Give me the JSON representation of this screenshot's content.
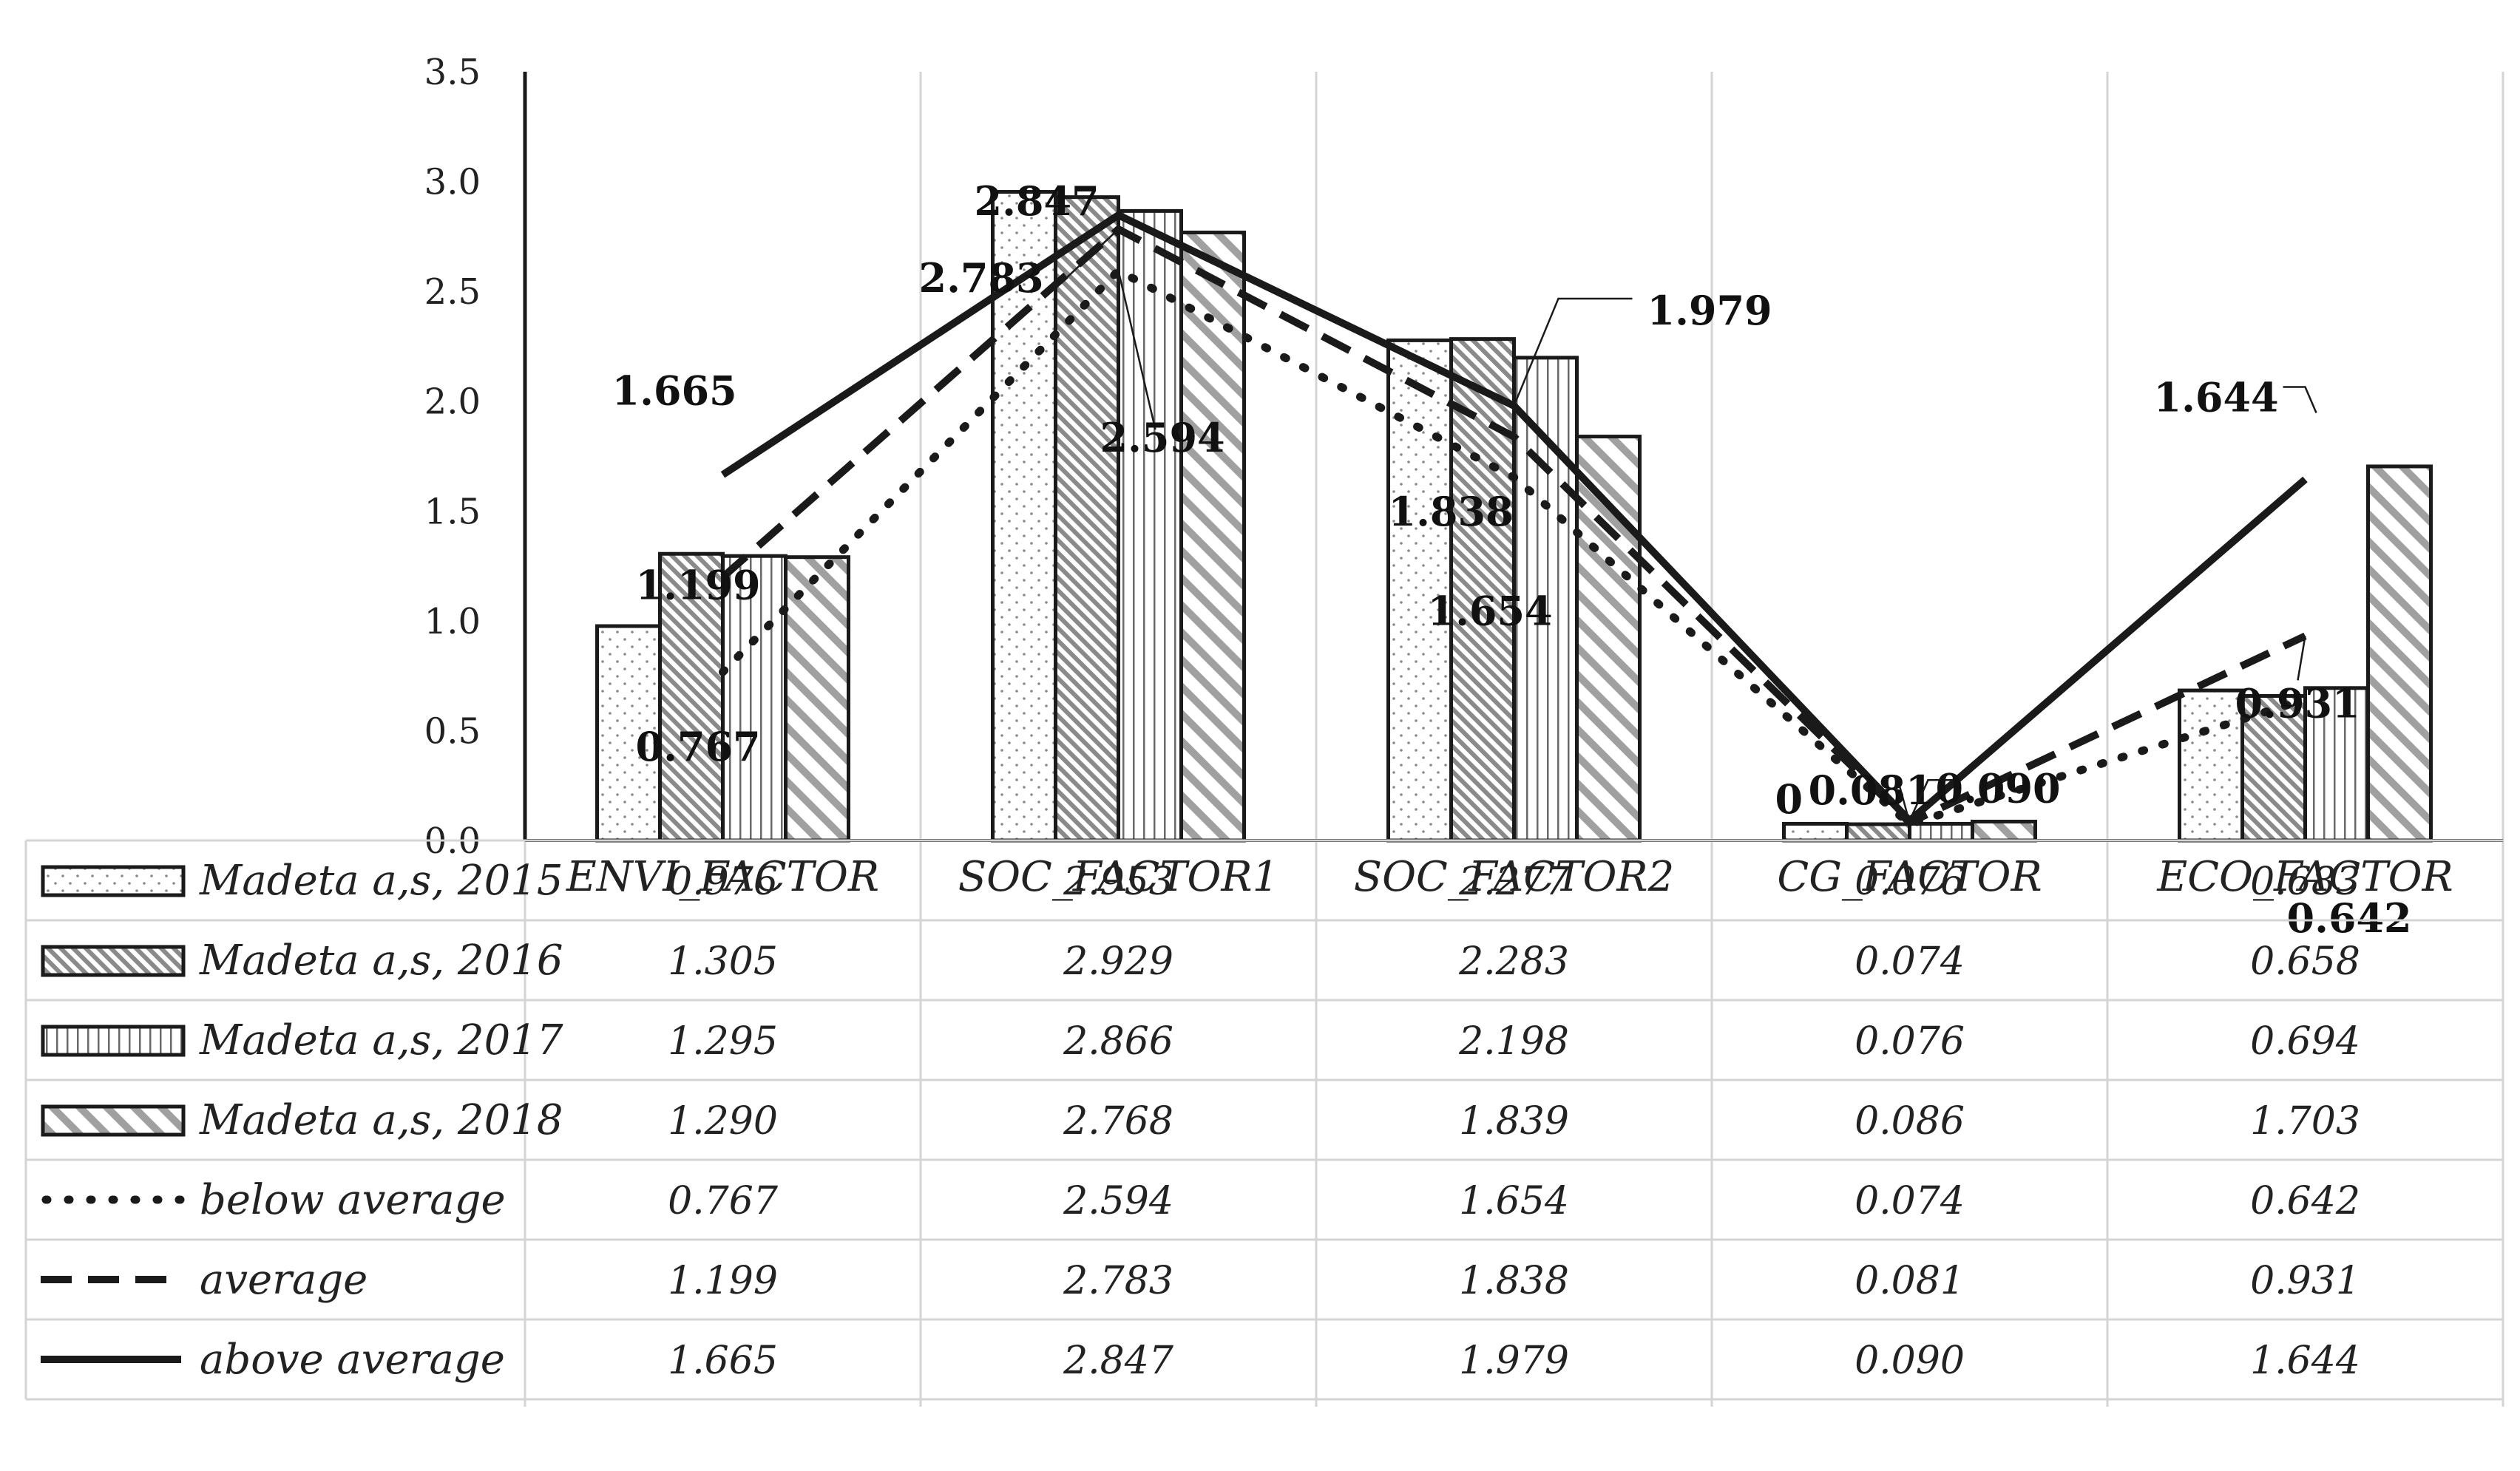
{
  "chart_data": {
    "type": "bar",
    "categories": [
      "ENVI_FACTOR",
      "SOC_FACTOR1",
      "SOC_FACTOR2",
      "CG_FACTOR",
      "ECO_FACTOR"
    ],
    "ylim": [
      0,
      3.5
    ],
    "yticks": [
      "0.0",
      "0.5",
      "1.0",
      "1.5",
      "2.0",
      "2.5",
      "3.0",
      "3.5"
    ],
    "grid": "vertical",
    "legend": "data-table below chart",
    "series": [
      {
        "name": "Madeta a,s, 2015",
        "kind": "bar",
        "pattern": "dots",
        "values": [
          0.976,
          2.953,
          2.277,
          0.076,
          0.683
        ],
        "labels": [
          "0.976",
          "2.953",
          "2.277",
          "0.076",
          "0.683"
        ]
      },
      {
        "name": "Madeta a,s, 2016",
        "kind": "bar",
        "pattern": "dense-diagonal",
        "values": [
          1.305,
          2.929,
          2.283,
          0.074,
          0.658
        ],
        "labels": [
          "1.305",
          "2.929",
          "2.283",
          "0.074",
          "0.658"
        ]
      },
      {
        "name": "Madeta a,s, 2017",
        "kind": "bar",
        "pattern": "vertical-lines",
        "values": [
          1.295,
          2.866,
          2.198,
          0.076,
          0.694
        ],
        "labels": [
          "1.295",
          "2.866",
          "2.198",
          "0.076",
          "0.694"
        ]
      },
      {
        "name": "Madeta a,s, 2018",
        "kind": "bar",
        "pattern": "wide-diagonal",
        "values": [
          1.29,
          2.768,
          1.839,
          0.086,
          1.703
        ],
        "labels": [
          "1.290",
          "2.768",
          "1.839",
          "0.086",
          "1.703"
        ]
      },
      {
        "name": "below average",
        "kind": "line",
        "style": "dotted",
        "values": [
          0.767,
          2.594,
          1.654,
          0.074,
          0.642
        ],
        "labels": [
          "0.767",
          "2.594",
          "1.654",
          "0.074",
          "0.642"
        ]
      },
      {
        "name": "average",
        "kind": "line",
        "style": "dashed",
        "values": [
          1.199,
          2.783,
          1.838,
          0.081,
          0.931
        ],
        "labels": [
          "1.199",
          "2.783",
          "1.838",
          "0.081",
          "0.931"
        ]
      },
      {
        "name": "above average",
        "kind": "line",
        "style": "solid",
        "values": [
          1.665,
          2.847,
          1.979,
          0.09,
          1.644
        ],
        "labels": [
          "1.665",
          "2.847",
          "1.979",
          "0.090",
          "1.644"
        ]
      }
    ],
    "annotations": [
      {
        "text": "1.665"
      },
      {
        "text": "1.199"
      },
      {
        "text": "0.767"
      },
      {
        "text": "2.847"
      },
      {
        "text": "2.783"
      },
      {
        "text": "2.594"
      },
      {
        "text": "1.979"
      },
      {
        "text": "1.838"
      },
      {
        "text": "1.654"
      },
      {
        "text": "0.081"
      },
      {
        "text": "0.090"
      },
      {
        "text": "0"
      },
      {
        "text": "1.644"
      },
      {
        "text": "0.931"
      },
      {
        "text": "0.642"
      }
    ],
    "colors": {
      "stroke": "#1a1a1a",
      "grid": "#d4d4d4",
      "hatch": "#6a6a6a",
      "fill": "#ffffff"
    }
  }
}
